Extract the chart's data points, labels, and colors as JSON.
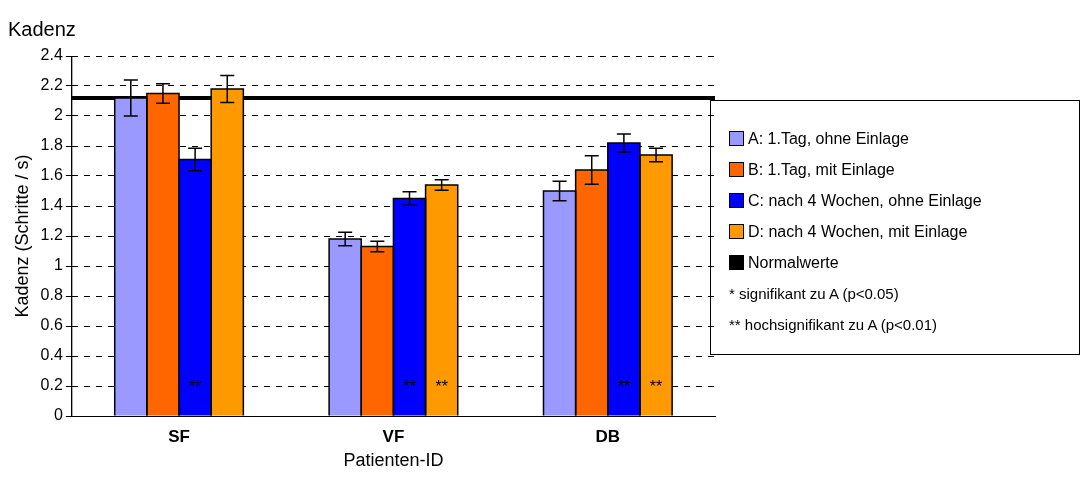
{
  "chart_data": {
    "type": "bar",
    "title": "Kadenz",
    "xlabel": "Patienten-ID",
    "ylabel": "Kadenz (Schritte / s)",
    "categories": [
      "SF",
      "VF",
      "DB"
    ],
    "series": [
      {
        "name": "A: 1.Tag, ohne Einlage",
        "color": "#9999ff",
        "values": [
          2.12,
          1.18,
          1.5
        ],
        "errors": [
          0.12,
          0.045,
          0.065
        ]
      },
      {
        "name": "B: 1.Tag, mit Einlage",
        "color": "#ff6600",
        "values": [
          2.15,
          1.13,
          1.64
        ],
        "errors": [
          0.065,
          0.035,
          0.095
        ]
      },
      {
        "name": "C: nach 4 Wochen, ohne Einlage",
        "color": "#0000ff",
        "values": [
          1.71,
          1.45,
          1.82
        ],
        "errors": [
          0.075,
          0.045,
          0.06
        ],
        "value_labels": [
          "**",
          "**",
          "**"
        ]
      },
      {
        "name": "D: nach 4 Wochen, mit Einlage",
        "color": "#ff9900",
        "values": [
          2.18,
          1.54,
          1.74
        ],
        "errors": [
          0.09,
          0.035,
          0.045
        ],
        "value_labels": [
          null,
          "**",
          "**"
        ]
      }
    ],
    "ref_lines": [
      {
        "axis": "y",
        "value": 2.12,
        "label": "Normalwerte",
        "color": "#000000"
      }
    ],
    "annotations": [
      "* signifikant zu A (p<0.05)",
      "** hochsignifikant zu A (p<0.01)"
    ],
    "ylim": [
      0,
      2.4
    ],
    "yticks": [
      0,
      0.2,
      0.4,
      0.6,
      0.8,
      1,
      1.2,
      1.4,
      1.6,
      1.8,
      2,
      2.2,
      2.4
    ],
    "grid": "y",
    "legend": "right"
  }
}
